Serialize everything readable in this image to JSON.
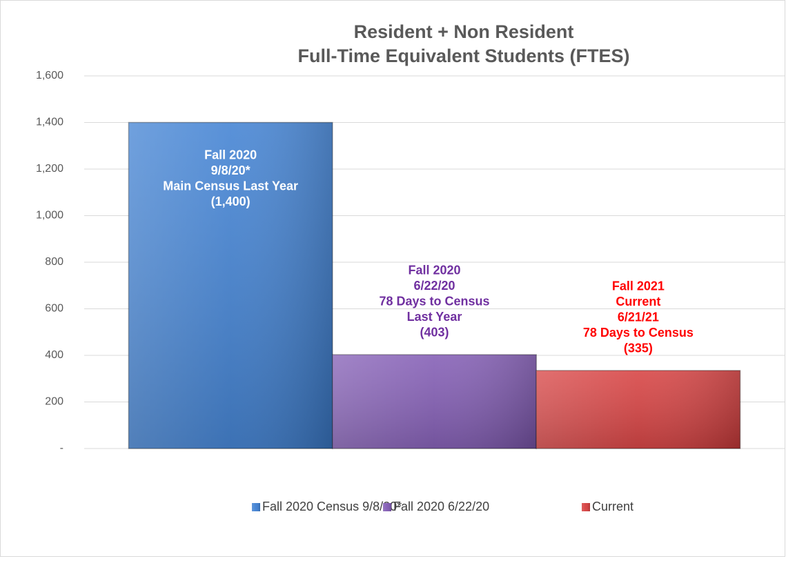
{
  "chart_data": {
    "type": "bar",
    "title": [
      "Resident + Non Resident",
      "Full-Time Equivalent Students (FTES)"
    ],
    "categories": [
      null
    ],
    "series": [
      {
        "name": "Fall 2020 Census 9/8/20*",
        "color": "#3d7fd2",
        "label_color": "#ffffff",
        "label_lines": [
          "Fall 2020",
          "9/8/20*",
          "Main Census Last Year"
        ],
        "values": [
          1400
        ],
        "value_labels": [
          "(1,400)"
        ]
      },
      {
        "name": "Fall 2020 6/22/20",
        "color": "#8059b3",
        "label_color": "#7030a0",
        "label_lines": [
          "Fall 2020",
          "6/22/20",
          "78 Days to Census",
          "Last Year"
        ],
        "values": [
          403
        ],
        "value_labels": [
          "(403)"
        ]
      },
      {
        "name": "Current",
        "color": "#d63d3d",
        "label_color": "#ff0000",
        "label_lines": [
          "Fall 2021",
          "Current",
          "6/21/21",
          "78 Days to Census"
        ],
        "values": [
          335
        ],
        "value_labels": [
          "(335)"
        ]
      }
    ],
    "ylim": [
      0,
      1600
    ],
    "yticks": [
      {
        "value": 0,
        "label": "-"
      },
      200,
      400,
      600,
      800,
      {
        "value": 1000,
        "label": "1,000"
      },
      {
        "value": 1200,
        "label": "1,200"
      },
      {
        "value": 1400,
        "label": "1,400"
      },
      {
        "value": 1600,
        "label": "1,600"
      }
    ],
    "grid": true,
    "legend": "bottom"
  }
}
